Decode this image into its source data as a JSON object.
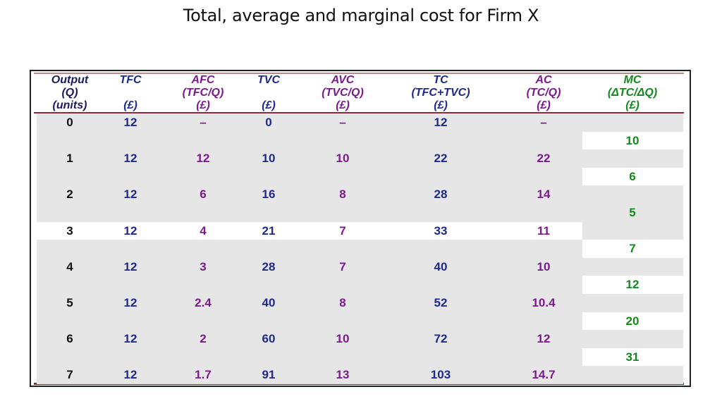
{
  "title": "Total, average and marginal cost for Firm X",
  "headers": [
    {
      "key": "output",
      "lines": [
        "Output",
        "(Q)",
        "(units)"
      ],
      "color": "#1a1a5e"
    },
    {
      "key": "tfc",
      "lines": [
        "TFC",
        "",
        "(£)"
      ],
      "color": "#1d2a8c"
    },
    {
      "key": "afc",
      "lines": [
        "AFC",
        "(TFC/Q)",
        "(£)"
      ],
      "color": "#7a1a8c"
    },
    {
      "key": "tvc",
      "lines": [
        "TVC",
        "",
        "(£)"
      ],
      "color": "#1d2a8c"
    },
    {
      "key": "avc",
      "lines": [
        "AVC",
        "(TVC/Q)",
        "(£)"
      ],
      "color": "#7a1a8c"
    },
    {
      "key": "tc",
      "lines": [
        "TC",
        "(TFC+TVC)",
        "(£)"
      ],
      "color": "#1d2a8c"
    },
    {
      "key": "ac",
      "lines": [
        "AC",
        "(TC/Q)",
        "(£)"
      ],
      "color": "#7a1a8c"
    },
    {
      "key": "mc",
      "lines": [
        "MC",
        "(ΔTC/ΔQ)",
        "(£)"
      ],
      "color": "#118a1a"
    }
  ],
  "rows": [
    {
      "q": "0",
      "tfc": "12",
      "afc": "–",
      "tvc": "0",
      "avc": "–",
      "tc": "12",
      "ac": "–"
    },
    {
      "q": "1",
      "tfc": "12",
      "afc": "12",
      "tvc": "10",
      "avc": "10",
      "tc": "22",
      "ac": "22"
    },
    {
      "q": "2",
      "tfc": "12",
      "afc": "6",
      "tvc": "16",
      "avc": "8",
      "tc": "28",
      "ac": "14"
    },
    {
      "q": "3",
      "tfc": "12",
      "afc": "4",
      "tvc": "21",
      "avc": "7",
      "tc": "33",
      "ac": "11"
    },
    {
      "q": "4",
      "tfc": "12",
      "afc": "3",
      "tvc": "28",
      "avc": "7",
      "tc": "40",
      "ac": "10"
    },
    {
      "q": "5",
      "tfc": "12",
      "afc": "2.4",
      "tvc": "40",
      "avc": "8",
      "tc": "52",
      "ac": "10.4"
    },
    {
      "q": "6",
      "tfc": "12",
      "afc": "2",
      "tvc": "60",
      "avc": "10",
      "tc": "72",
      "ac": "12"
    },
    {
      "q": "7",
      "tfc": "12",
      "afc": "1.7",
      "tvc": "91",
      "avc": "13",
      "tc": "103",
      "ac": "14.7"
    }
  ],
  "mc": [
    "10",
    "6",
    "5",
    "7",
    "12",
    "20",
    "31"
  ]
}
